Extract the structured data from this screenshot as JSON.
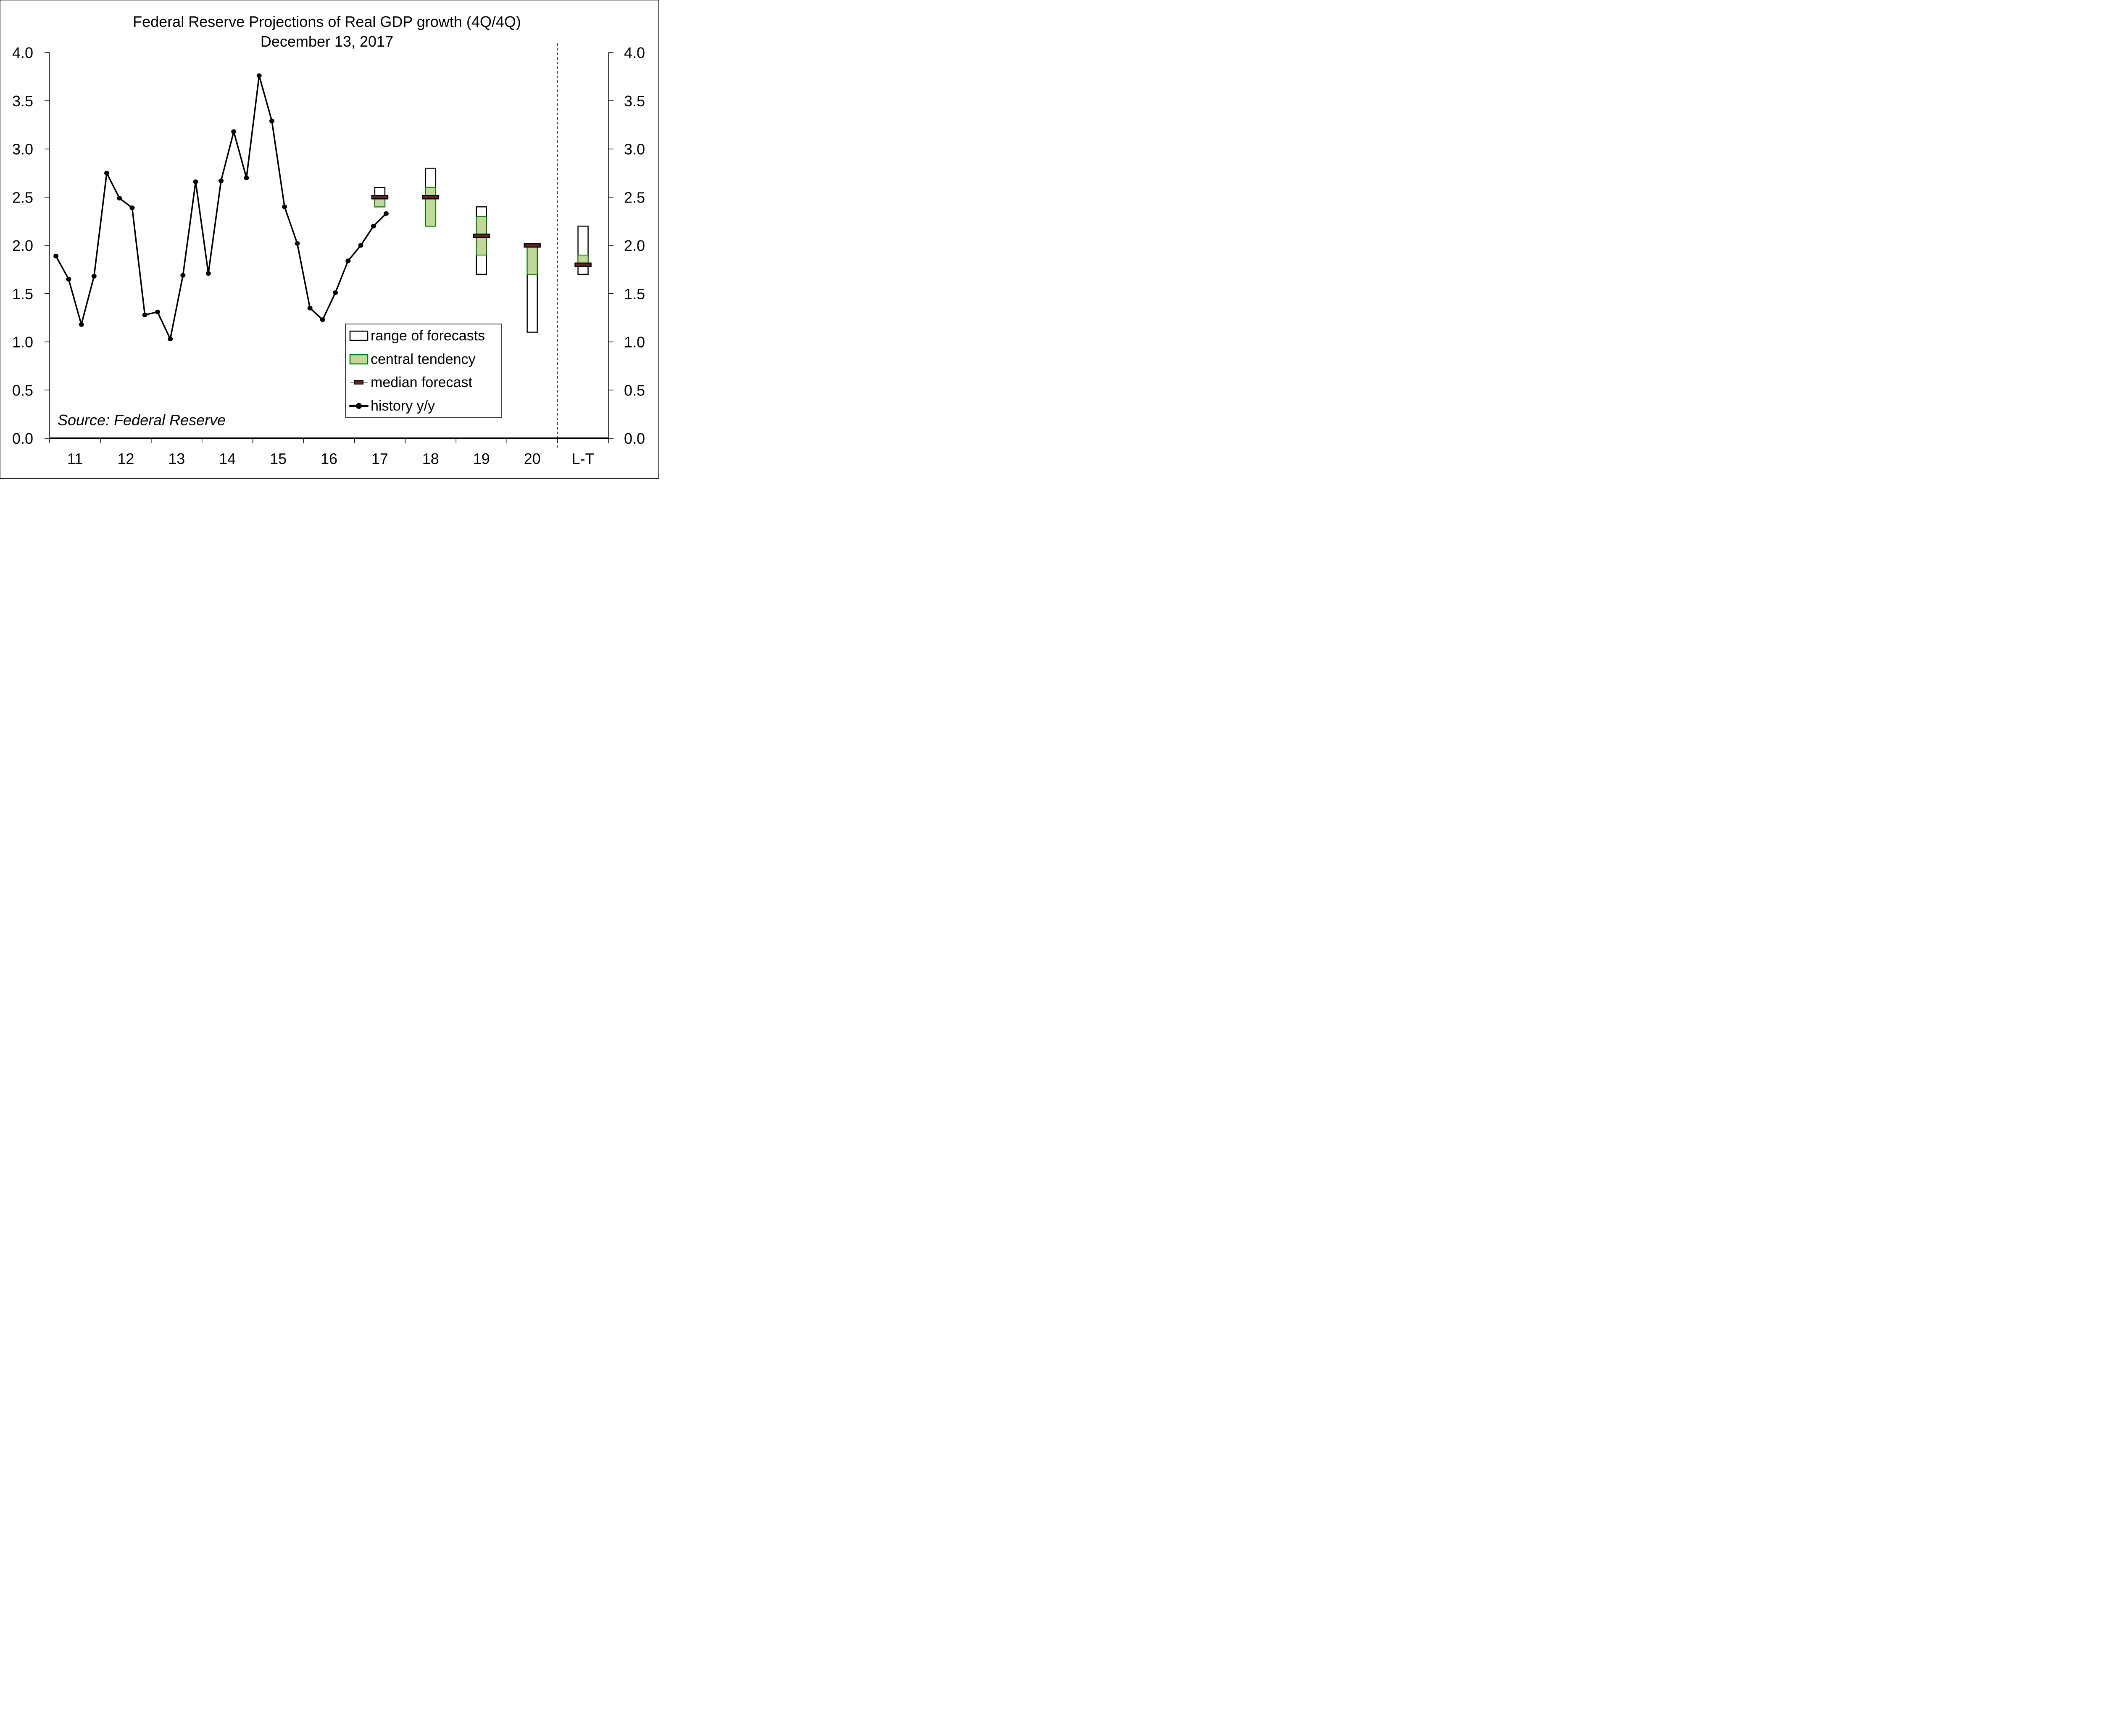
{
  "chart_data": {
    "type": "line",
    "title": "Federal Reserve Projections of Real GDP growth (4Q/4Q)",
    "subtitle": "December 13, 2017",
    "xlabel": "",
    "ylabel": "",
    "ylim": [
      0,
      4
    ],
    "y_ticks": [
      "0.0",
      "0.5",
      "1.0",
      "1.5",
      "2.0",
      "2.5",
      "3.0",
      "3.5",
      "4.0"
    ],
    "y_tick_values": [
      0,
      0.5,
      1.0,
      1.5,
      2.0,
      2.5,
      3.0,
      3.5,
      4.0
    ],
    "right_axis_mirror": true,
    "grid": false,
    "categories": [
      "11",
      "12",
      "13",
      "14",
      "15",
      "16",
      "17",
      "18",
      "19",
      "20",
      "L-T"
    ],
    "separator_after": "20",
    "history": {
      "name": "history y/y",
      "frequency": "quarterly",
      "start": "2011Q1",
      "values": [
        1.89,
        1.65,
        1.18,
        1.68,
        2.75,
        2.49,
        2.39,
        1.28,
        1.31,
        1.03,
        1.69,
        2.66,
        1.71,
        2.67,
        3.18,
        2.7,
        3.76,
        3.29,
        2.4,
        2.02,
        1.35,
        1.23,
        1.51,
        1.84,
        2.0,
        2.2,
        2.33
      ]
    },
    "projections": [
      {
        "period": "17",
        "range": [
          2.4,
          2.6
        ],
        "central_tendency": [
          2.4,
          2.5
        ],
        "median": 2.5
      },
      {
        "period": "18",
        "range": [
          2.2,
          2.8
        ],
        "central_tendency": [
          2.2,
          2.6
        ],
        "median": 2.5
      },
      {
        "period": "19",
        "range": [
          1.7,
          2.4
        ],
        "central_tendency": [
          1.9,
          2.3
        ],
        "median": 2.1
      },
      {
        "period": "20",
        "range": [
          1.1,
          2.0
        ],
        "central_tendency": [
          1.7,
          2.0
        ],
        "median": 2.0
      },
      {
        "period": "L-T",
        "range": [
          1.7,
          2.2
        ],
        "central_tendency": [
          1.8,
          1.9
        ],
        "median": 1.8
      }
    ],
    "legend": {
      "placement": "bottom-center-right",
      "items": [
        {
          "key": "range",
          "label": "range of forecasts"
        },
        {
          "key": "central",
          "label": "central tendency"
        },
        {
          "key": "median",
          "label": "median forecast"
        },
        {
          "key": "history",
          "label": "history y/y"
        }
      ]
    },
    "annotation": "Source: Federal Reserve",
    "colors": {
      "history": "#000000",
      "range_fill": "#ffffff",
      "range_border": "#000000",
      "central_fill": "#c4d79b",
      "central_border": "#008000",
      "median_fill": "#632423",
      "median_border": "#000000"
    }
  }
}
